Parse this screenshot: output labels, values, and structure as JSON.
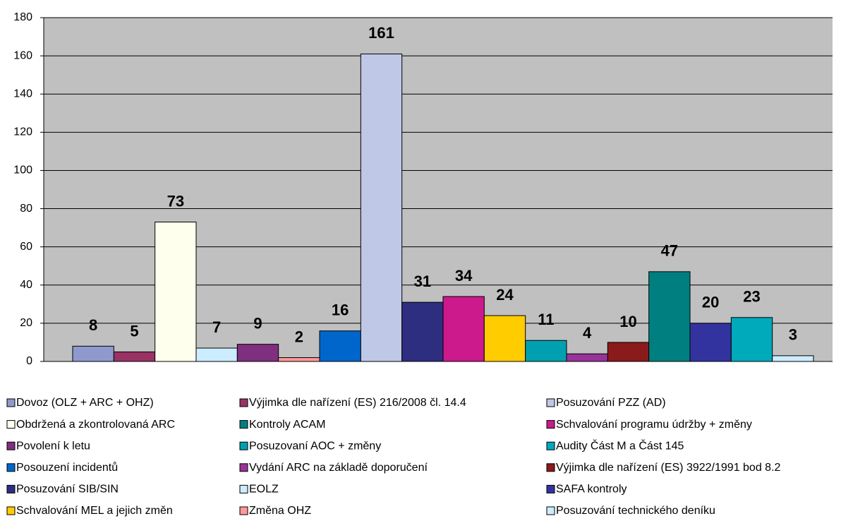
{
  "chart_data": {
    "type": "bar",
    "categories": [
      "Dovoz (OLZ + ARC + OHZ)",
      "Výjimka dle nařízení (ES) 216/2008 čl. 14.4",
      "Obdržená a zkontrolovaná ARC",
      "EOLZ",
      "Povolení k letu",
      "Změna OHZ",
      "Posouzení incidentů",
      "Posuzování PZZ (AD)",
      "Posuzování SIB/SIN",
      "Schvalování programu údržby + změny",
      "Schvalování MEL a jejich změn",
      "Posuzovaní AOC + změny",
      "Vydání ARC na základě doporučení",
      "Výjimka dle nařízení (ES) 3922/1991 bod 8.2",
      "Kontroly ACAM",
      "SAFA kontroly",
      "Audity Část M a Část 145",
      "Posuzování technického deníku"
    ],
    "values": [
      8,
      5,
      73,
      7,
      9,
      2,
      16,
      161,
      31,
      34,
      24,
      11,
      4,
      10,
      47,
      20,
      23,
      3
    ],
    "colors": [
      "#8f99cc",
      "#993366",
      "#ffffee",
      "#ccecff",
      "#7f2f7f",
      "#ff9999",
      "#0066cc",
      "#c0c8e8",
      "#2e2e80",
      "#cc1a8c",
      "#ffcc00",
      "#00a0b0",
      "#993399",
      "#8b1a1a",
      "#007f80",
      "#3333a0",
      "#00aabb",
      "#ccecff"
    ],
    "ylim": [
      0,
      180
    ],
    "yticks": [
      0,
      20,
      40,
      60,
      80,
      100,
      120,
      140,
      160,
      180
    ],
    "grid": true,
    "legend": "bottom"
  }
}
